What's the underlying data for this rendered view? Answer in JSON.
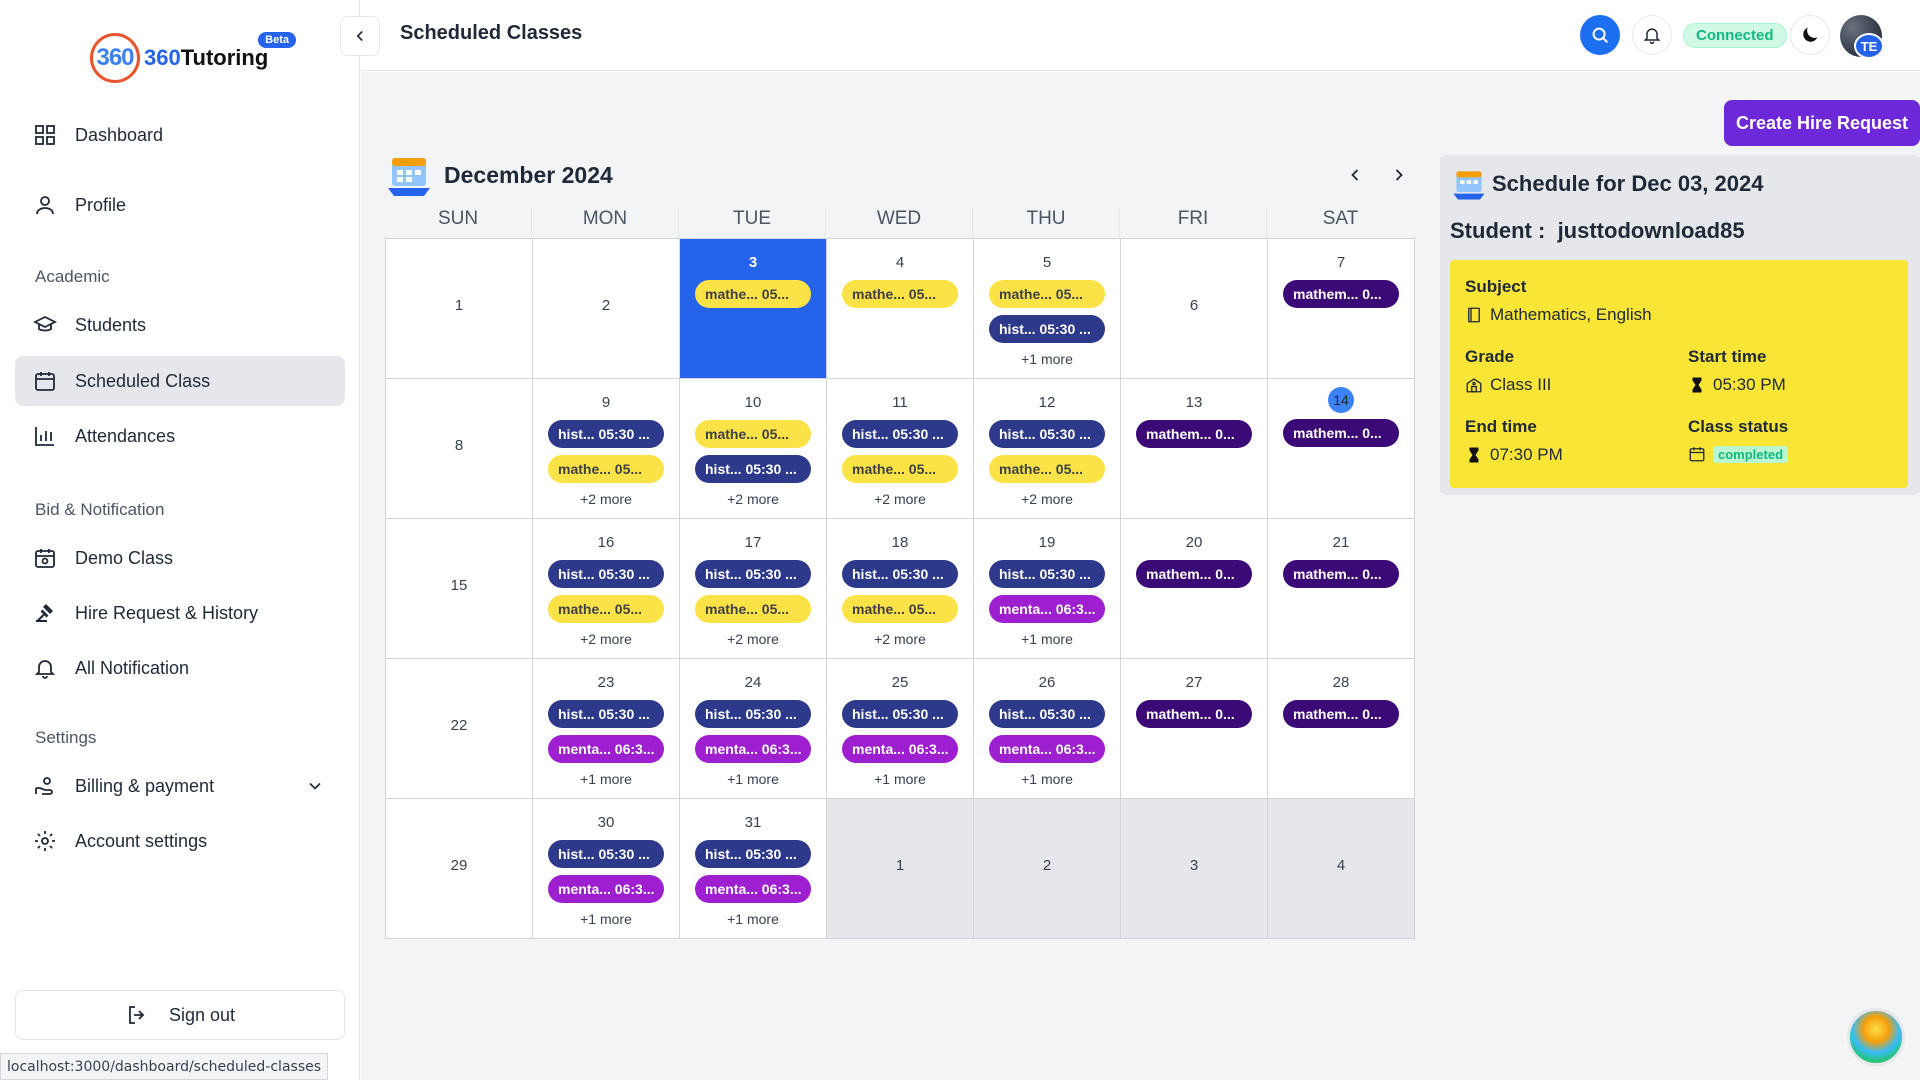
{
  "brand": {
    "mark": "360",
    "name_prefix": "360",
    "name": "Tutoring",
    "badge": "Beta"
  },
  "nav": {
    "dashboard": "Dashboard",
    "profile": "Profile",
    "section_academic": "Academic",
    "students": "Students",
    "scheduled_class": "Scheduled Class",
    "attendances": "Attendances",
    "section_bid": "Bid & Notification",
    "demo_class": "Demo Class",
    "hire_request": "Hire Request & History",
    "all_notification": "All Notification",
    "section_settings": "Settings",
    "billing": "Billing & payment",
    "account_settings": "Account settings",
    "sign_out": "Sign out"
  },
  "status_url": "localhost:3000/dashboard/scheduled-classes",
  "header": {
    "title": "Scheduled Classes",
    "connection": "Connected",
    "avatar_initials": "TE"
  },
  "actions": {
    "create_hire_request": "Create Hire Request"
  },
  "calendar": {
    "month": "December 2024",
    "weekdays": [
      "SUN",
      "MON",
      "TUE",
      "WED",
      "THU",
      "FRI",
      "SAT"
    ],
    "weeks": [
      [
        {
          "n": "1",
          "center": true,
          "events": []
        },
        {
          "n": "2",
          "center": true,
          "events": []
        },
        {
          "n": "3",
          "selected": true,
          "events": [
            {
              "c": "math",
              "t": "mathe...   05..."
            }
          ]
        },
        {
          "n": "4",
          "events": [
            {
              "c": "math",
              "t": "mathe...   05..."
            }
          ]
        },
        {
          "n": "5",
          "events": [
            {
              "c": "math",
              "t": "mathe...   05..."
            },
            {
              "c": "history",
              "t": "hist...  05:30 ..."
            }
          ],
          "more": "+1 more"
        },
        {
          "n": "6",
          "center": true,
          "events": []
        },
        {
          "n": "7",
          "events": [
            {
              "c": "math-dark",
              "t": "mathem...  0..."
            }
          ]
        }
      ],
      [
        {
          "n": "8",
          "center": true,
          "events": []
        },
        {
          "n": "9",
          "events": [
            {
              "c": "history",
              "t": "hist...  05:30 ..."
            },
            {
              "c": "math",
              "t": "mathe...   05..."
            }
          ],
          "more": "+2 more"
        },
        {
          "n": "10",
          "events": [
            {
              "c": "math",
              "t": "mathe...   05..."
            },
            {
              "c": "history",
              "t": "hist...  05:30 ..."
            }
          ],
          "more": "+2 more"
        },
        {
          "n": "11",
          "events": [
            {
              "c": "history",
              "t": "hist...  05:30 ..."
            },
            {
              "c": "math",
              "t": "mathe...   05..."
            }
          ],
          "more": "+2 more"
        },
        {
          "n": "12",
          "events": [
            {
              "c": "history",
              "t": "hist...  05:30 ..."
            },
            {
              "c": "math",
              "t": "mathe...   05..."
            }
          ],
          "more": "+2 more"
        },
        {
          "n": "13",
          "events": [
            {
              "c": "math-dark",
              "t": "mathem...  0..."
            }
          ]
        },
        {
          "n": "14",
          "today": true,
          "events": [
            {
              "c": "math-dark",
              "t": "mathem...  0..."
            }
          ]
        }
      ],
      [
        {
          "n": "15",
          "center": true,
          "events": []
        },
        {
          "n": "16",
          "events": [
            {
              "c": "history",
              "t": "hist...  05:30 ..."
            },
            {
              "c": "math",
              "t": "mathe...   05..."
            }
          ],
          "more": "+2 more"
        },
        {
          "n": "17",
          "events": [
            {
              "c": "history",
              "t": "hist...  05:30 ..."
            },
            {
              "c": "math",
              "t": "mathe...   05..."
            }
          ],
          "more": "+2 more"
        },
        {
          "n": "18",
          "events": [
            {
              "c": "history",
              "t": "hist...  05:30 ..."
            },
            {
              "c": "math",
              "t": "mathe...   05..."
            }
          ],
          "more": "+2 more"
        },
        {
          "n": "19",
          "events": [
            {
              "c": "history",
              "t": "hist...  05:30 ..."
            },
            {
              "c": "mental",
              "t": "menta... 06:3..."
            }
          ],
          "more": "+1 more"
        },
        {
          "n": "20",
          "events": [
            {
              "c": "math-dark",
              "t": "mathem...  0..."
            }
          ]
        },
        {
          "n": "21",
          "events": [
            {
              "c": "math-dark",
              "t": "mathem...  0..."
            }
          ]
        }
      ],
      [
        {
          "n": "22",
          "center": true,
          "events": []
        },
        {
          "n": "23",
          "events": [
            {
              "c": "history",
              "t": "hist...  05:30 ..."
            },
            {
              "c": "mental",
              "t": "menta... 06:3..."
            }
          ],
          "more": "+1 more"
        },
        {
          "n": "24",
          "events": [
            {
              "c": "history",
              "t": "hist...  05:30 ..."
            },
            {
              "c": "mental",
              "t": "menta... 06:3..."
            }
          ],
          "more": "+1 more"
        },
        {
          "n": "25",
          "events": [
            {
              "c": "history",
              "t": "hist...  05:30 ..."
            },
            {
              "c": "mental",
              "t": "menta... 06:3..."
            }
          ],
          "more": "+1 more"
        },
        {
          "n": "26",
          "events": [
            {
              "c": "history",
              "t": "hist...  05:30 ..."
            },
            {
              "c": "mental",
              "t": "menta... 06:3..."
            }
          ],
          "more": "+1 more"
        },
        {
          "n": "27",
          "events": [
            {
              "c": "math-dark",
              "t": "mathem...  0..."
            }
          ]
        },
        {
          "n": "28",
          "events": [
            {
              "c": "math-dark",
              "t": "mathem...  0..."
            }
          ]
        }
      ],
      [
        {
          "n": "29",
          "center": true,
          "events": []
        },
        {
          "n": "30",
          "events": [
            {
              "c": "history",
              "t": "hist...  05:30 ..."
            },
            {
              "c": "mental",
              "t": "menta... 06:3..."
            }
          ],
          "more": "+1 more"
        },
        {
          "n": "31",
          "events": [
            {
              "c": "history",
              "t": "hist...  05:30 ..."
            },
            {
              "c": "mental",
              "t": "menta... 06:3..."
            }
          ],
          "more": "+1 more"
        },
        {
          "n": "1",
          "center": true,
          "other": true,
          "events": []
        },
        {
          "n": "2",
          "center": true,
          "other": true,
          "events": []
        },
        {
          "n": "3",
          "center": true,
          "other": true,
          "events": []
        },
        {
          "n": "4",
          "center": true,
          "other": true,
          "events": []
        }
      ]
    ]
  },
  "schedule": {
    "title": "Schedule for Dec 03, 2024",
    "student_label": "Student :",
    "student_name": "justtodownload85",
    "subject_label": "Subject",
    "subject_value": "Mathematics, English",
    "grade_label": "Grade",
    "grade_value": "Class III",
    "start_label": "Start time",
    "start_value": "05:30 PM",
    "end_label": "End time",
    "end_value": "07:30 PM",
    "status_label": "Class status",
    "status_value": "completed"
  },
  "colors": {
    "accent": "#2563eb",
    "hire": "#6d28d9",
    "history": "#2d3a8c",
    "math": "#fbe347",
    "math_dark": "#3c0a77",
    "mental": "#9d1fcf",
    "card": "#f9e535"
  }
}
